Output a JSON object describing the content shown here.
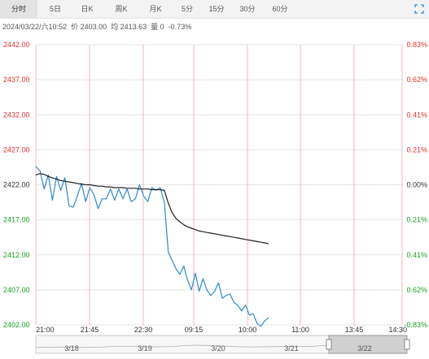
{
  "tabs": [
    {
      "label": "分时",
      "active": true
    },
    {
      "label": "5日",
      "active": false
    },
    {
      "label": "日K",
      "active": false
    },
    {
      "label": "周K",
      "active": false
    },
    {
      "label": "月K",
      "active": false
    },
    {
      "label": "5分",
      "active": false
    },
    {
      "label": "15分",
      "active": false
    },
    {
      "label": "30分",
      "active": false
    },
    {
      "label": "60分",
      "active": false
    }
  ],
  "expand_icon": "expand-icon",
  "info": {
    "datetime": "2024/03/22/六10:52",
    "price": "价 2403.00",
    "avg": "均 2413.63",
    "volume": "量 0",
    "change": "-0.73%"
  },
  "colors": {
    "price_line": "#2e8ad1",
    "avg_line": "#222222",
    "up": "#e5302f",
    "down": "#1a9e22",
    "grid_h": "#e5e5e5",
    "grid_v": "#f08a8a",
    "navigator": "#c8c8c8"
  },
  "chart_data": {
    "type": "line",
    "ylim": [
      2402.0,
      2442.0
    ],
    "y_ticks": [
      "2442.00",
      "2437.00",
      "2432.00",
      "2427.00",
      "2422.00",
      "2417.00",
      "2412.00",
      "2407.00",
      "2402.00"
    ],
    "pct_ticks": [
      {
        "label": "0.83%",
        "sign": "up"
      },
      {
        "label": "0.62%",
        "sign": "up"
      },
      {
        "label": "0.41%",
        "sign": "up"
      },
      {
        "label": "0.21%",
        "sign": "up"
      },
      {
        "label": "0.00%",
        "sign": "flat"
      },
      {
        "label": "0.21%",
        "sign": "down"
      },
      {
        "label": "0.41%",
        "sign": "down"
      },
      {
        "label": "0.62%",
        "sign": "down"
      },
      {
        "label": "-0.83%",
        "sign": "down"
      }
    ],
    "x_ticks": [
      "21:00",
      "21:45",
      "22:30",
      "09:15",
      "10:00",
      "11:00",
      "13:45",
      "14:30"
    ],
    "session_points": 32,
    "series": [
      {
        "name": "价",
        "color": "#2e8ad1",
        "values": [
          2424.6,
          2424.0,
          2421.4,
          2423.4,
          2419.8,
          2423.2,
          2421.2,
          2423.0,
          2419.0,
          2418.8,
          2420.4,
          2422.2,
          2419.6,
          2421.6,
          2420.6,
          2418.6,
          2420.0,
          2420.0,
          2421.4,
          2419.8,
          2421.4,
          2420.0,
          2421.4,
          2419.6,
          2420.0,
          2422.0,
          2420.4,
          2419.6,
          2421.6,
          2421.2,
          2421.6,
          2419.4,
          2412.4,
          2411.2,
          2410.0,
          2409.2,
          2410.4,
          2408.4,
          2407.0,
          2409.4,
          2406.8,
          2408.6,
          2407.0,
          2406.2,
          2406.8,
          2408.0,
          2405.8,
          2406.2,
          2406.4,
          2405.2,
          2404.8,
          2404.0,
          2404.8,
          2403.4,
          2403.6,
          2402.2,
          2401.8,
          2402.6,
          2403.0
        ]
      },
      {
        "name": "均",
        "color": "#222222",
        "values": [
          2423.4,
          2423.6,
          2423.5,
          2423.2,
          2423.0,
          2422.8,
          2422.6,
          2422.5,
          2422.4,
          2422.3,
          2422.2,
          2422.1,
          2422.0,
          2422.0,
          2421.9,
          2421.8,
          2421.8,
          2421.7,
          2421.7,
          2421.6,
          2421.6,
          2421.6,
          2421.5,
          2421.5,
          2421.5,
          2421.4,
          2421.4,
          2421.4,
          2421.3,
          2421.3,
          2421.3,
          2421.2,
          2419.4,
          2418.0,
          2417.2,
          2416.7,
          2416.3,
          2416.0,
          2415.8,
          2415.6,
          2415.4,
          2415.3,
          2415.2,
          2415.1,
          2415.0,
          2414.9,
          2414.8,
          2414.7,
          2414.6,
          2414.5,
          2414.4,
          2414.3,
          2414.2,
          2414.1,
          2414.0,
          2413.9,
          2413.8,
          2413.7,
          2413.6
        ]
      }
    ]
  },
  "navigator": {
    "labels": [
      "3/18",
      "3/19",
      "3/20",
      "3/21",
      "3/22"
    ]
  }
}
